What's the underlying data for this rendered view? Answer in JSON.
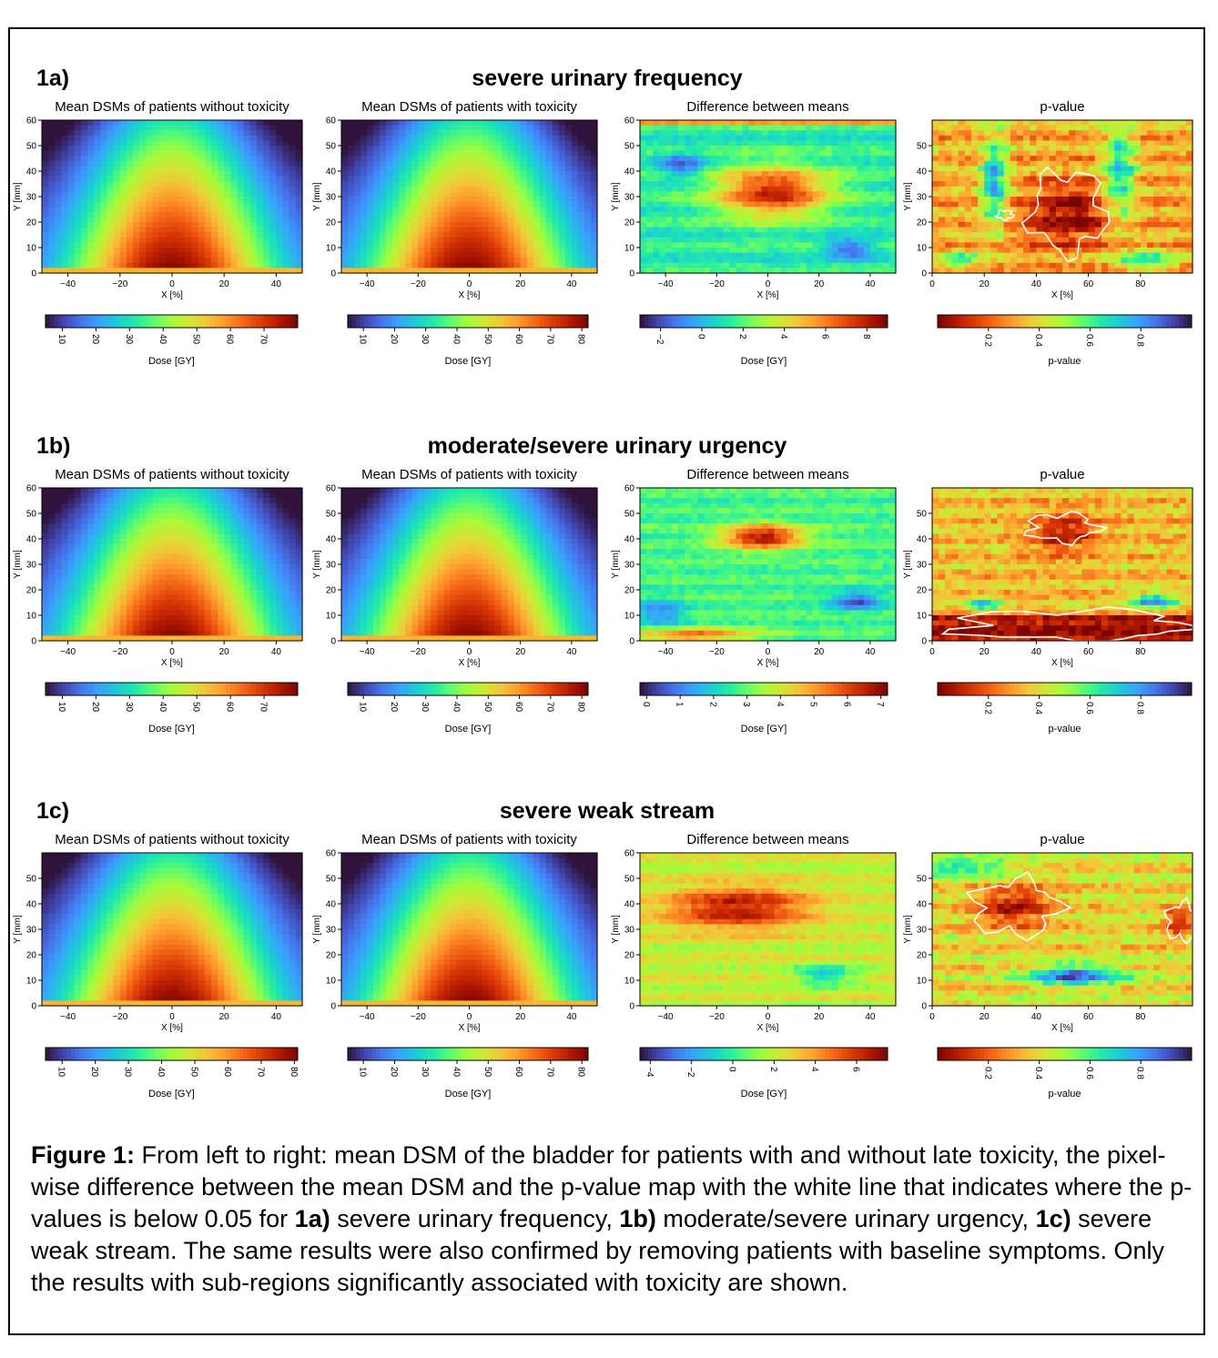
{
  "rows": [
    {
      "label": "1a)",
      "title": "severe urinary frequency",
      "panels": [
        {
          "title": "Mean DSMs of patients without toxicity",
          "type": "dose",
          "x_ticks": [
            "−40",
            "−20",
            "0",
            "20",
            "40"
          ],
          "x_tick_values": [
            -40,
            -20,
            0,
            20,
            40
          ],
          "xlim": [
            -50,
            50
          ],
          "y_ticks": [
            "0",
            "10",
            "20",
            "30",
            "40",
            "50",
            "60"
          ],
          "y_tick_values": [
            0,
            10,
            20,
            30,
            40,
            50,
            60
          ],
          "ylim": [
            0,
            60
          ],
          "xlabel": "X [%]",
          "ylabel": "Y [mm]",
          "cb_ticks": [
            "10",
            "20",
            "30",
            "40",
            "50",
            "60",
            "70"
          ],
          "cb_tick_values": [
            10,
            20,
            30,
            40,
            50,
            60,
            70
          ],
          "cb_range": [
            5,
            80
          ],
          "cb_label": "Dose [GY]",
          "cmap": "turbo"
        },
        {
          "title": "Mean DSMs of patients with toxicity",
          "type": "dose",
          "x_ticks": [
            "−40",
            "−20",
            "0",
            "20",
            "40"
          ],
          "x_tick_values": [
            -40,
            -20,
            0,
            20,
            40
          ],
          "xlim": [
            -50,
            50
          ],
          "y_ticks": [
            "0",
            "10",
            "20",
            "30",
            "40",
            "50",
            "60"
          ],
          "y_tick_values": [
            0,
            10,
            20,
            30,
            40,
            50,
            60
          ],
          "ylim": [
            0,
            60
          ],
          "xlabel": "X [%]",
          "ylabel": "Y [mm]",
          "cb_ticks": [
            "10",
            "20",
            "30",
            "40",
            "50",
            "60",
            "70",
            "80"
          ],
          "cb_tick_values": [
            10,
            20,
            30,
            40,
            50,
            60,
            70,
            80
          ],
          "cb_range": [
            5,
            82
          ],
          "cb_label": "Dose [GY]",
          "cmap": "turbo"
        },
        {
          "title": "Difference between means",
          "type": "diff",
          "x_ticks": [
            "−40",
            "−20",
            "0",
            "20",
            "40"
          ],
          "x_tick_values": [
            -40,
            -20,
            0,
            20,
            40
          ],
          "xlim": [
            -50,
            50
          ],
          "y_ticks": [
            "0",
            "10",
            "20",
            "30",
            "40",
            "50",
            "60"
          ],
          "y_tick_values": [
            0,
            10,
            20,
            30,
            40,
            50,
            60
          ],
          "ylim": [
            0,
            60
          ],
          "xlabel": "X [%]",
          "ylabel": "Y [mm]",
          "cb_ticks": [
            "−2",
            "0",
            "2",
            "4",
            "6",
            "8"
          ],
          "cb_tick_values": [
            -2,
            0,
            2,
            4,
            6,
            8
          ],
          "cb_range": [
            -3,
            9
          ],
          "cb_label": "Dose [GY]",
          "cmap": "turbo"
        },
        {
          "title": "p-value",
          "type": "pval",
          "x_ticks": [
            "0",
            "20",
            "40",
            "60",
            "80"
          ],
          "x_tick_values": [
            0,
            20,
            40,
            60,
            80
          ],
          "xlim": [
            0,
            100
          ],
          "y_ticks": [
            "0",
            "10",
            "20",
            "30",
            "40",
            "50"
          ],
          "y_tick_values": [
            0,
            10,
            20,
            30,
            40,
            50
          ],
          "ylim": [
            0,
            60
          ],
          "xlabel": "X [%]",
          "ylabel": "Y [mm]",
          "cb_ticks": [
            "0.2",
            "0.4",
            "0.6",
            "0.8"
          ],
          "cb_tick_values": [
            0.2,
            0.4,
            0.6,
            0.8
          ],
          "cb_range": [
            0,
            1
          ],
          "cb_label": "p-value",
          "cmap": "turbo_r"
        }
      ]
    },
    {
      "label": "1b)",
      "title": "moderate/severe urinary urgency",
      "panels": [
        {
          "title": "Mean DSMs of patients without toxicity",
          "type": "dose",
          "x_ticks": [
            "−40",
            "−20",
            "0",
            "20",
            "40"
          ],
          "x_tick_values": [
            -40,
            -20,
            0,
            20,
            40
          ],
          "xlim": [
            -50,
            50
          ],
          "y_ticks": [
            "0",
            "10",
            "20",
            "30",
            "40",
            "50",
            "60"
          ],
          "y_tick_values": [
            0,
            10,
            20,
            30,
            40,
            50,
            60
          ],
          "ylim": [
            0,
            60
          ],
          "xlabel": "X [%]",
          "ylabel": "Y [mm]",
          "cb_ticks": [
            "10",
            "20",
            "30",
            "40",
            "50",
            "60",
            "70"
          ],
          "cb_tick_values": [
            10,
            20,
            30,
            40,
            50,
            60,
            70
          ],
          "cb_range": [
            5,
            80
          ],
          "cb_label": "Dose [GY]",
          "cmap": "turbo"
        },
        {
          "title": "Mean DSMs of patients with toxicity",
          "type": "dose",
          "x_ticks": [
            "−40",
            "−20",
            "0",
            "20",
            "40"
          ],
          "x_tick_values": [
            -40,
            -20,
            0,
            20,
            40
          ],
          "xlim": [
            -50,
            50
          ],
          "y_ticks": [
            "0",
            "10",
            "20",
            "30",
            "40",
            "50",
            "60"
          ],
          "y_tick_values": [
            0,
            10,
            20,
            30,
            40,
            50,
            60
          ],
          "ylim": [
            0,
            60
          ],
          "xlabel": "X [%]",
          "ylabel": "Y [mm]",
          "cb_ticks": [
            "10",
            "20",
            "30",
            "40",
            "50",
            "60",
            "70",
            "80"
          ],
          "cb_tick_values": [
            10,
            20,
            30,
            40,
            50,
            60,
            70,
            80
          ],
          "cb_range": [
            5,
            82
          ],
          "cb_label": "Dose [GY]",
          "cmap": "turbo"
        },
        {
          "title": "Difference between means",
          "type": "diff",
          "x_ticks": [
            "−40",
            "−20",
            "0",
            "20",
            "40"
          ],
          "x_tick_values": [
            -40,
            -20,
            0,
            20,
            40
          ],
          "xlim": [
            -50,
            50
          ],
          "y_ticks": [
            "0",
            "10",
            "20",
            "30",
            "40",
            "50",
            "60"
          ],
          "y_tick_values": [
            0,
            10,
            20,
            30,
            40,
            50,
            60
          ],
          "ylim": [
            0,
            60
          ],
          "xlabel": "X [%]",
          "ylabel": "Y [mm]",
          "cb_ticks": [
            "0",
            "1",
            "2",
            "3",
            "4",
            "5",
            "6",
            "7"
          ],
          "cb_tick_values": [
            0,
            1,
            2,
            3,
            4,
            5,
            6,
            7
          ],
          "cb_range": [
            -0.2,
            7.2
          ],
          "cb_label": "Dose [GY]",
          "cmap": "turbo"
        },
        {
          "title": "p-value",
          "type": "pval",
          "x_ticks": [
            "0",
            "20",
            "40",
            "60",
            "80"
          ],
          "x_tick_values": [
            0,
            20,
            40,
            60,
            80
          ],
          "xlim": [
            0,
            100
          ],
          "y_ticks": [
            "0",
            "10",
            "20",
            "30",
            "40",
            "50"
          ],
          "y_tick_values": [
            0,
            10,
            20,
            30,
            40,
            50
          ],
          "ylim": [
            0,
            60
          ],
          "xlabel": "X [%]",
          "ylabel": "Y [mm]",
          "cb_ticks": [
            "0.2",
            "0.4",
            "0.6",
            "0.8"
          ],
          "cb_tick_values": [
            0.2,
            0.4,
            0.6,
            0.8
          ],
          "cb_range": [
            0,
            1
          ],
          "cb_label": "p-value",
          "cmap": "turbo_r"
        }
      ]
    },
    {
      "label": "1c)",
      "title": "severe weak stream",
      "panels": [
        {
          "title": "Mean DSMs of patients without toxicity",
          "type": "dose",
          "x_ticks": [
            "−40",
            "−20",
            "0",
            "20",
            "40"
          ],
          "x_tick_values": [
            -40,
            -20,
            0,
            20,
            40
          ],
          "xlim": [
            -50,
            50
          ],
          "y_ticks": [
            "0",
            "10",
            "20",
            "30",
            "40",
            "50"
          ],
          "y_tick_values": [
            0,
            10,
            20,
            30,
            40,
            50
          ],
          "ylim": [
            0,
            60
          ],
          "xlabel": "X [%]",
          "ylabel": "Y [mm]",
          "cb_ticks": [
            "10",
            "20",
            "30",
            "40",
            "50",
            "60",
            "70",
            "80"
          ],
          "cb_tick_values": [
            10,
            20,
            30,
            40,
            50,
            60,
            70,
            80
          ],
          "cb_range": [
            5,
            81
          ],
          "cb_label": "Dose [GY]",
          "cmap": "turbo"
        },
        {
          "title": "Mean DSMs of patients with toxicity",
          "type": "dose",
          "x_ticks": [
            "−40",
            "−20",
            "0",
            "20",
            "40"
          ],
          "x_tick_values": [
            -40,
            -20,
            0,
            20,
            40
          ],
          "xlim": [
            -50,
            50
          ],
          "y_ticks": [
            "0",
            "10",
            "20",
            "30",
            "40",
            "50",
            "60"
          ],
          "y_tick_values": [
            0,
            10,
            20,
            30,
            40,
            50,
            60
          ],
          "ylim": [
            0,
            60
          ],
          "xlabel": "X [%]",
          "ylabel": "Y [mm]",
          "cb_ticks": [
            "10",
            "20",
            "30",
            "40",
            "50",
            "60",
            "70",
            "80"
          ],
          "cb_tick_values": [
            10,
            20,
            30,
            40,
            50,
            60,
            70,
            80
          ],
          "cb_range": [
            5,
            82
          ],
          "cb_label": "Dose [GY]",
          "cmap": "turbo"
        },
        {
          "title": "Difference between means",
          "type": "diff",
          "x_ticks": [
            "−40",
            "−20",
            "0",
            "20",
            "40"
          ],
          "x_tick_values": [
            -40,
            -20,
            0,
            20,
            40
          ],
          "xlim": [
            -50,
            50
          ],
          "y_ticks": [
            "0",
            "10",
            "20",
            "30",
            "40",
            "50",
            "60"
          ],
          "y_tick_values": [
            0,
            10,
            20,
            30,
            40,
            50,
            60
          ],
          "ylim": [
            0,
            60
          ],
          "xlabel": "X [%]",
          "ylabel": "Y [mm]",
          "cb_ticks": [
            "−4",
            "−2",
            "0",
            "2",
            "4",
            "6"
          ],
          "cb_tick_values": [
            -4,
            -2,
            0,
            2,
            4,
            6
          ],
          "cb_range": [
            -4.5,
            7.5
          ],
          "cb_label": "Dose [GY]",
          "cmap": "turbo"
        },
        {
          "title": "p-value",
          "type": "pval",
          "x_ticks": [
            "0",
            "20",
            "40",
            "60",
            "80"
          ],
          "x_tick_values": [
            0,
            20,
            40,
            60,
            80
          ],
          "xlim": [
            0,
            100
          ],
          "y_ticks": [
            "0",
            "10",
            "20",
            "30",
            "40",
            "50"
          ],
          "y_tick_values": [
            0,
            10,
            20,
            30,
            40,
            50
          ],
          "ylim": [
            0,
            60
          ],
          "xlabel": "X [%]",
          "ylabel": "Y [mm]",
          "cb_ticks": [
            "0.2",
            "0.4",
            "0.6",
            "0.8"
          ],
          "cb_tick_values": [
            0.2,
            0.4,
            0.6,
            0.8
          ],
          "cb_range": [
            0,
            1
          ],
          "cb_label": "p-value",
          "cmap": "turbo_r"
        }
      ]
    }
  ],
  "chart_data": {
    "type": "heatmap",
    "rows": [
      "severe urinary frequency",
      "moderate/severe urinary urgency",
      "severe weak stream"
    ],
    "panel_titles": [
      "Mean DSMs of patients without toxicity",
      "Mean DSMs of patients with toxicity",
      "Difference between means",
      "p-value"
    ],
    "colormap": "turbo",
    "significance_contour": {
      "level": 0.05,
      "color": "#ffffff"
    }
  },
  "caption": {
    "figure_label": "Figure 1:",
    "part1": " From left to right: mean DSM of the bladder for patients with and without late toxicity, the pixel-wise difference between the mean DSM and the p-value map with the white line that indicates where the p-values is below 0.05 for ",
    "ref_a": "1a)",
    "part2": " severe urinary frequency, ",
    "ref_b": "1b)",
    "part3": " moderate/severe urinary urgency, ",
    "ref_c": "1c)",
    "part4": " severe weak stream. The same results were also confirmed by removing patients with baseline symptoms. Only the results with sub-regions significantly associated with toxicity are shown."
  }
}
